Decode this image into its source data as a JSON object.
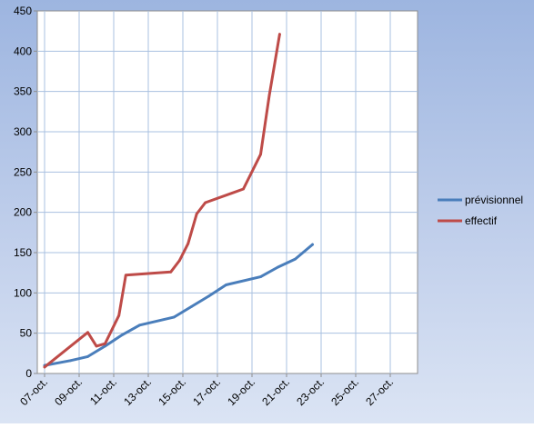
{
  "chart_data": {
    "type": "line",
    "x": [
      "07-oct.",
      "08-oct.",
      "09-oct.",
      "10-oct.",
      "11-oct.",
      "12-oct.",
      "13-oct.",
      "14-oct.",
      "15-oct.",
      "16-oct.",
      "17-oct.",
      "18-oct.",
      "19-oct.",
      "20-oct.",
      "21-oct.",
      "22-oct.",
      "23-oct.",
      "24-oct.",
      "25-oct.",
      "26-oct.",
      "27-oct.",
      "28-oct."
    ],
    "x_tick_labels": [
      "07-oct.",
      "09-oct.",
      "11-oct.",
      "13-oct.",
      "15-oct.",
      "17-oct.",
      "19-oct.",
      "21-oct.",
      "23-oct.",
      "25-oct.",
      "27-oct."
    ],
    "ylim": [
      0,
      450
    ],
    "y_ticks": [
      0,
      50,
      100,
      150,
      200,
      250,
      300,
      350,
      400,
      450
    ],
    "grid": true,
    "legend_position": "right",
    "series": [
      {
        "name": "prévisionnel",
        "color": "#4a7ebb",
        "points": [
          [
            0,
            10
          ],
          [
            1.5,
            16
          ],
          [
            2.5,
            21
          ],
          [
            3.5,
            34
          ],
          [
            4.5,
            48
          ],
          [
            5.5,
            60
          ],
          [
            7.5,
            70
          ],
          [
            8.5,
            83
          ],
          [
            9.5,
            96
          ],
          [
            10.5,
            110
          ],
          [
            12.5,
            120
          ],
          [
            13.5,
            132
          ],
          [
            14.5,
            142
          ],
          [
            15.5,
            160
          ]
        ]
      },
      {
        "name": "effectif",
        "color": "#be4b48",
        "points": [
          [
            0,
            8
          ],
          [
            2.5,
            51
          ],
          [
            3,
            34
          ],
          [
            3.5,
            37
          ],
          [
            4.3,
            72
          ],
          [
            4.7,
            122
          ],
          [
            7.3,
            126
          ],
          [
            7.8,
            140
          ],
          [
            8.3,
            161
          ],
          [
            8.8,
            198
          ],
          [
            9.3,
            212
          ],
          [
            11.5,
            229
          ],
          [
            12.5,
            272
          ],
          [
            13,
            345
          ],
          [
            13.6,
            421
          ]
        ]
      }
    ]
  }
}
